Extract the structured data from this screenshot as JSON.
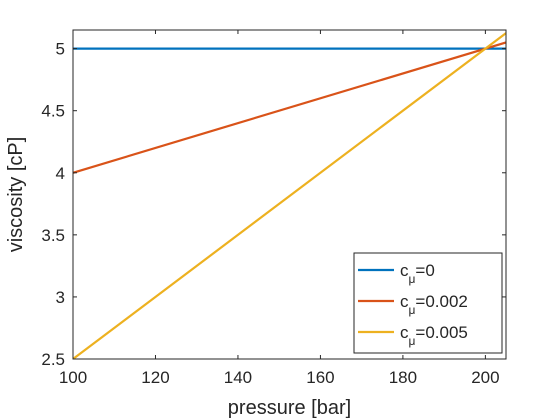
{
  "chart_data": {
    "type": "line",
    "xlabel": "pressure [bar]",
    "ylabel": "viscosity [cP]",
    "xlim": [
      100,
      205
    ],
    "ylim": [
      2.5,
      5.15
    ],
    "x_ticks": [
      100,
      120,
      140,
      160,
      180,
      200
    ],
    "x_tick_labels": [
      "100",
      "120",
      "140",
      "160",
      "180",
      "200"
    ],
    "y_ticks": [
      2.5,
      3,
      3.5,
      4,
      4.5,
      5
    ],
    "y_tick_labels": [
      "2.5",
      "3",
      "3.5",
      "4",
      "4.5",
      "5"
    ],
    "grid": false,
    "legend_position": "bottom-right",
    "series": [
      {
        "name_base": "c",
        "name_sub": "μ",
        "name_rest": "=0",
        "color": "#0072BD",
        "x": [
          100,
          205
        ],
        "y": [
          5.0,
          5.0
        ]
      },
      {
        "name_base": "c",
        "name_sub": "μ",
        "name_rest": "=0.002",
        "color": "#D95319",
        "x": [
          100,
          205
        ],
        "y": [
          4.0,
          5.05
        ]
      },
      {
        "name_base": "c",
        "name_sub": "μ",
        "name_rest": "=0.005",
        "color": "#EDB120",
        "x": [
          100,
          205
        ],
        "y": [
          2.5,
          5.125
        ]
      }
    ]
  }
}
